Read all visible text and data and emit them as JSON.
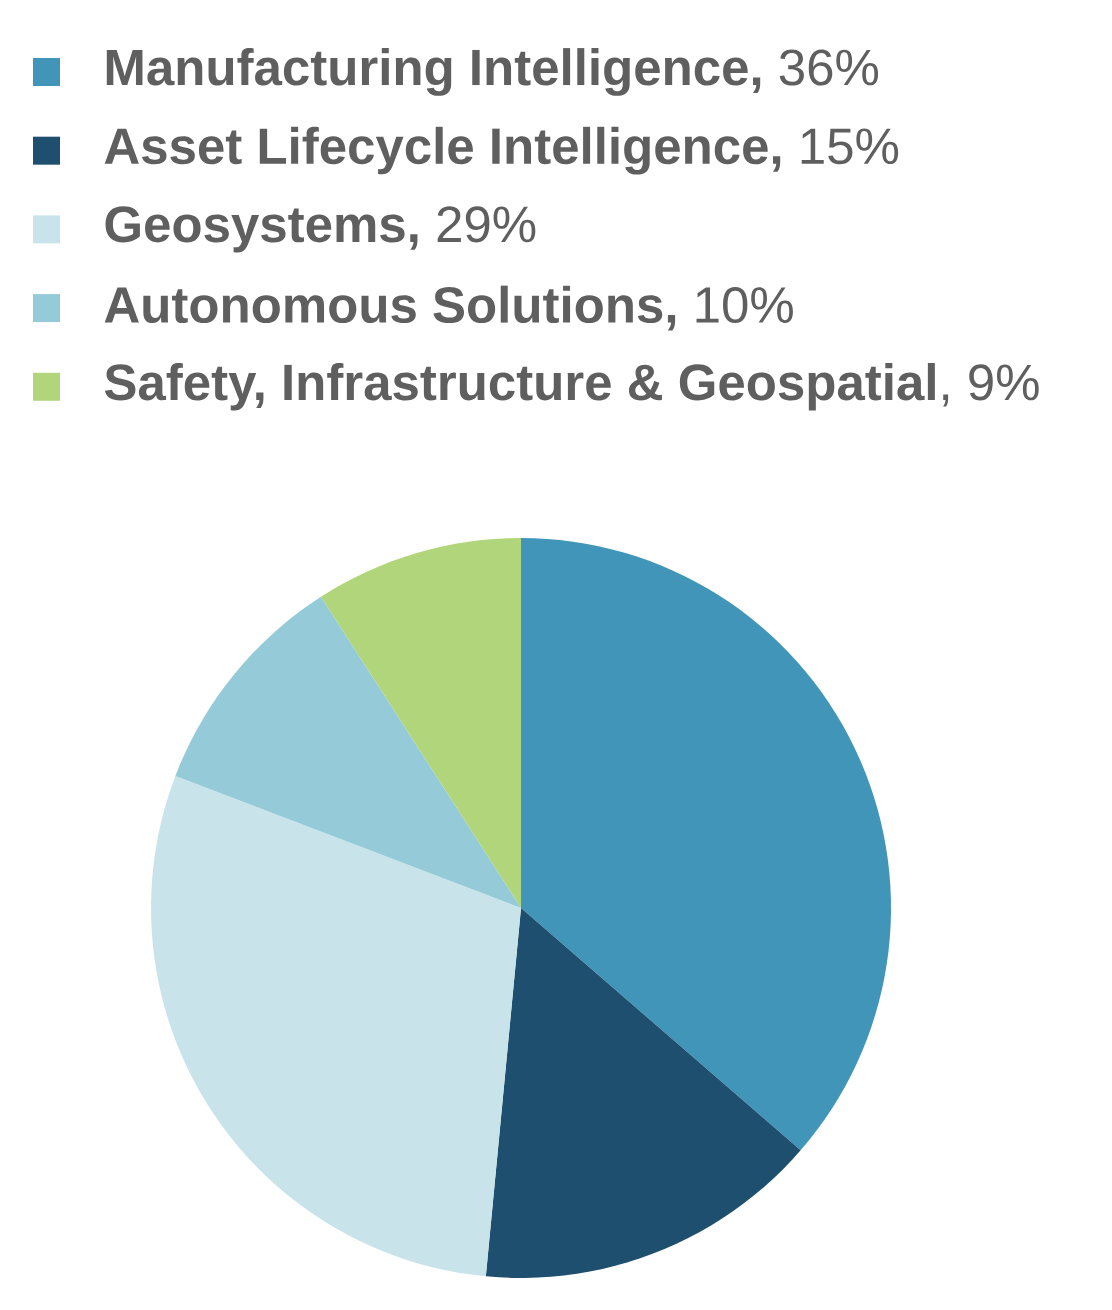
{
  "chart_data": {
    "type": "pie",
    "categories": [
      "**Manufacturing Intelligence,** 36%",
      "**Asset Lifecycle Intelligence,** 15%",
      "**Geosystems,** 29%",
      "**Autonomous Solutions,** 10%",
      "**Safety, Infrastructure & Geospatial**, 9%"
    ],
    "values": [
      36,
      15,
      29,
      10,
      9
    ],
    "colors": [
      "#4195b8",
      "#1f4f6e",
      "#c8e4ea",
      "#95cbd8",
      "#b0d57a"
    ],
    "legend": "top left"
  }
}
